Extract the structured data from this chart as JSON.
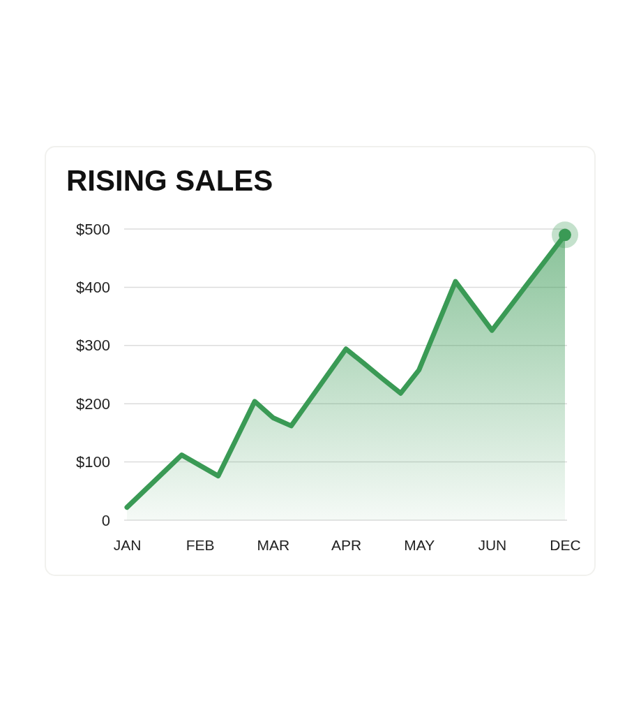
{
  "chart_data": {
    "type": "area",
    "title": "RISING SALES",
    "categories": [
      "JAN",
      null,
      null,
      null,
      "FEB",
      null,
      null,
      null,
      "MAR",
      null,
      null,
      null,
      "APR",
      null,
      null,
      null,
      "MAY",
      null,
      null,
      null,
      "JUN",
      null,
      null,
      null,
      "DEC"
    ],
    "series": [
      {
        "color": "#3a9a55",
        "marker": "none",
        "values": [
          22,
          52,
          82,
          112,
          94,
          76,
          140,
          204,
          176,
          162,
          206,
          250,
          294,
          269,
          243,
          218,
          258,
          334,
          410,
          368,
          326,
          367,
          408,
          449,
          490
        ]
      },
      {
        "type": "scatter",
        "color": "#3a9a55",
        "marker": "circle",
        "values": [
          null,
          null,
          null,
          null,
          null,
          null,
          null,
          null,
          null,
          null,
          null,
          null,
          null,
          null,
          null,
          null,
          null,
          null,
          null,
          null,
          null,
          null,
          null,
          null,
          490
        ]
      }
    ],
    "ylim": [
      0,
      500
    ],
    "yticks": [
      0,
      {
        "value": 100,
        "label": "$100"
      },
      {
        "value": 200,
        "label": "$200"
      },
      {
        "value": 300,
        "label": "$300"
      },
      {
        "value": 400,
        "label": "$400"
      },
      {
        "value": 500,
        "label": "$500"
      }
    ],
    "grid": "y"
  }
}
